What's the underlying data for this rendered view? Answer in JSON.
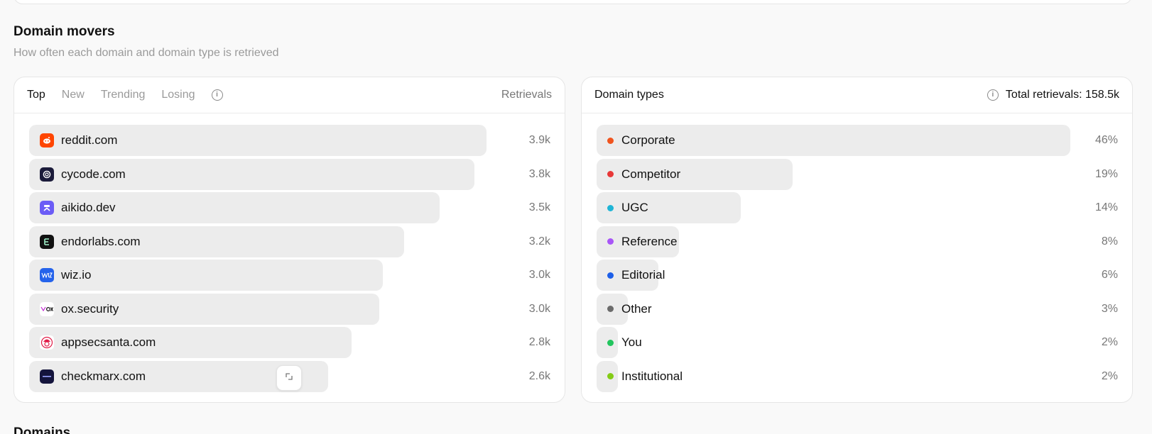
{
  "section": {
    "title": "Domain movers",
    "subtitle": "How often each domain and domain type is retrieved",
    "next_title": "Domains"
  },
  "left_panel": {
    "tabs": [
      {
        "label": "Top",
        "active": true
      },
      {
        "label": "New",
        "active": false
      },
      {
        "label": "Trending",
        "active": false
      },
      {
        "label": "Losing",
        "active": false
      }
    ],
    "column_label": "Retrievals",
    "rows": [
      {
        "domain": "reddit.com",
        "value": "3.9k",
        "retrievals": 3900,
        "icon": "reddit-icon",
        "icon_color": "#ff4500"
      },
      {
        "domain": "cycode.com",
        "value": "3.8k",
        "retrievals": 3800,
        "icon": "cycode-icon",
        "icon_color": "#1b1b3a"
      },
      {
        "domain": "aikido.dev",
        "value": "3.5k",
        "retrievals": 3500,
        "icon": "aikido-icon",
        "icon_color": "#6b5cf6"
      },
      {
        "domain": "endorlabs.com",
        "value": "3.2k",
        "retrievals": 3200,
        "icon": "endorlabs-icon",
        "icon_color": "#111111"
      },
      {
        "domain": "wiz.io",
        "value": "3.0k",
        "retrievals": 3020,
        "icon": "wiz-icon",
        "icon_color": "#2563eb"
      },
      {
        "domain": "ox.security",
        "value": "3.0k",
        "retrievals": 2990,
        "icon": "ox-security-icon",
        "icon_color": "#ffffff"
      },
      {
        "domain": "appsecsanta.com",
        "value": "2.8k",
        "retrievals": 2750,
        "icon": "appsecsanta-icon",
        "icon_color": "#ffffff"
      },
      {
        "domain": "checkmarx.com",
        "value": "2.6k",
        "retrievals": 2550,
        "icon": "checkmarx-icon",
        "icon_color": "#14143c"
      }
    ]
  },
  "right_panel": {
    "title": "Domain types",
    "total_label": "Total retrievals: 158.5k",
    "rows": [
      {
        "type": "Corporate",
        "value": "46%",
        "percent": 46,
        "color": "#f0541e"
      },
      {
        "type": "Competitor",
        "value": "19%",
        "percent": 19,
        "color": "#e83838"
      },
      {
        "type": "UGC",
        "value": "14%",
        "percent": 14,
        "color": "#1fb5d6"
      },
      {
        "type": "Reference",
        "value": "8%",
        "percent": 8,
        "color": "#a855f7"
      },
      {
        "type": "Editorial",
        "value": "6%",
        "percent": 6,
        "color": "#1d5fe8"
      },
      {
        "type": "Other",
        "value": "3%",
        "percent": 3,
        "color": "#6b6b6b"
      },
      {
        "type": "You",
        "value": "2%",
        "percent": 2,
        "color": "#22c55e"
      },
      {
        "type": "Institutional",
        "value": "2%",
        "percent": 2,
        "color": "#84cc16"
      }
    ]
  }
}
